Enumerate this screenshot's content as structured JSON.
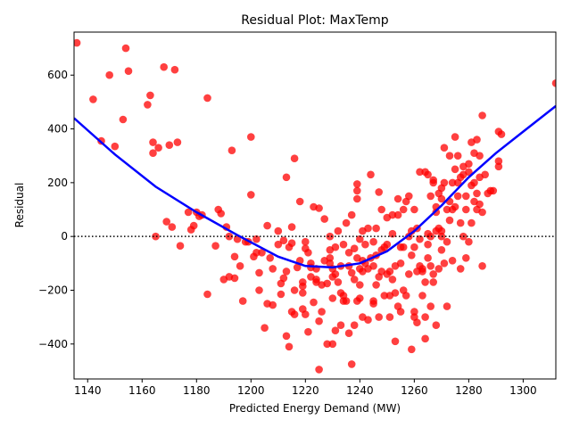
{
  "chart_data": {
    "type": "scatter",
    "title": "Residual Plot: MaxTemp",
    "xlabel": "Predicted Energy Demand (MW)",
    "ylabel": "Residual",
    "xlim": [
      1135,
      1312
    ],
    "ylim": [
      -530,
      760
    ],
    "xticks": [
      1140,
      1160,
      1180,
      1200,
      1220,
      1240,
      1260,
      1280,
      1300
    ],
    "yticks": [
      -400,
      -200,
      0,
      200,
      400,
      600
    ],
    "grid": false,
    "reference_line": {
      "y": 0,
      "style": "dotted",
      "color": "#000000"
    },
    "colors": {
      "points": "#ff0000",
      "trend": "#0000ff"
    },
    "trend_line": {
      "x": [
        1135,
        1150,
        1165,
        1180,
        1195,
        1210,
        1220,
        1230,
        1240,
        1250,
        1260,
        1270,
        1280,
        1290,
        1300,
        1312
      ],
      "y": [
        440,
        305,
        185,
        90,
        5,
        -75,
        -110,
        -115,
        -100,
        -55,
        20,
        115,
        220,
        310,
        390,
        485
      ]
    },
    "points": [
      [
        1136,
        720
      ],
      [
        1142,
        510
      ],
      [
        1145,
        355
      ],
      [
        1148,
        600
      ],
      [
        1150,
        335
      ],
      [
        1153,
        435
      ],
      [
        1154,
        700
      ],
      [
        1155,
        615
      ],
      [
        1162,
        490
      ],
      [
        1163,
        525
      ],
      [
        1164,
        350
      ],
      [
        1164,
        310
      ],
      [
        1165,
        0
      ],
      [
        1166,
        330
      ],
      [
        1168,
        630
      ],
      [
        1169,
        55
      ],
      [
        1170,
        340
      ],
      [
        1171,
        35
      ],
      [
        1172,
        620
      ],
      [
        1173,
        350
      ],
      [
        1174,
        -35
      ],
      [
        1177,
        90
      ],
      [
        1178,
        25
      ],
      [
        1179,
        40
      ],
      [
        1180,
        90
      ],
      [
        1181,
        75
      ],
      [
        1182,
        80
      ],
      [
        1184,
        515
      ],
      [
        1184,
        -215
      ],
      [
        1187,
        -35
      ],
      [
        1188,
        100
      ],
      [
        1189,
        85
      ],
      [
        1190,
        -160
      ],
      [
        1191,
        35
      ],
      [
        1192,
        0
      ],
      [
        1192,
        -150
      ],
      [
        1193,
        320
      ],
      [
        1194,
        -155
      ],
      [
        1194,
        -75
      ],
      [
        1195,
        -10
      ],
      [
        1196,
        -110
      ],
      [
        1197,
        -240
      ],
      [
        1198,
        -20
      ],
      [
        1199,
        -20
      ],
      [
        1200,
        155
      ],
      [
        1200,
        370
      ],
      [
        1201,
        -75
      ],
      [
        1202,
        -60
      ],
      [
        1202,
        -10
      ],
      [
        1203,
        -135
      ],
      [
        1203,
        -200
      ],
      [
        1204,
        -60
      ],
      [
        1205,
        -340
      ],
      [
        1206,
        -250
      ],
      [
        1206,
        40
      ],
      [
        1207,
        -80
      ],
      [
        1208,
        -255
      ],
      [
        1208,
        -120
      ],
      [
        1210,
        -30
      ],
      [
        1210,
        20
      ],
      [
        1211,
        -175
      ],
      [
        1211,
        -215
      ],
      [
        1212,
        -15
      ],
      [
        1212,
        -155
      ],
      [
        1213,
        -370
      ],
      [
        1213,
        220
      ],
      [
        1213,
        -130
      ],
      [
        1214,
        -40
      ],
      [
        1214,
        -410
      ],
      [
        1215,
        -25
      ],
      [
        1215,
        -280
      ],
      [
        1215,
        35
      ],
      [
        1216,
        -290
      ],
      [
        1216,
        -200
      ],
      [
        1216,
        290
      ],
      [
        1217,
        -115
      ],
      [
        1218,
        130
      ],
      [
        1218,
        -90
      ],
      [
        1219,
        -185
      ],
      [
        1219,
        -170
      ],
      [
        1219,
        -210
      ],
      [
        1219,
        -270
      ],
      [
        1220,
        -20
      ],
      [
        1220,
        -290
      ],
      [
        1220,
        -45
      ],
      [
        1221,
        -60
      ],
      [
        1221,
        -355
      ],
      [
        1222,
        -150
      ],
      [
        1222,
        -115
      ],
      [
        1222,
        -100
      ],
      [
        1223,
        110
      ],
      [
        1223,
        -245
      ],
      [
        1224,
        -170
      ],
      [
        1224,
        -160
      ],
      [
        1224,
        -120
      ],
      [
        1225,
        -495
      ],
      [
        1225,
        -315
      ],
      [
        1225,
        105
      ],
      [
        1226,
        -180
      ],
      [
        1226,
        -280
      ],
      [
        1227,
        -90
      ],
      [
        1227,
        65
      ],
      [
        1228,
        -400
      ],
      [
        1228,
        -175
      ],
      [
        1229,
        -100
      ],
      [
        1229,
        -50
      ],
      [
        1229,
        -80
      ],
      [
        1229,
        0
      ],
      [
        1230,
        -120
      ],
      [
        1230,
        -150
      ],
      [
        1230,
        -230
      ],
      [
        1230,
        -400
      ],
      [
        1231,
        -140
      ],
      [
        1231,
        -350
      ],
      [
        1231,
        -40
      ],
      [
        1232,
        -170
      ],
      [
        1232,
        20
      ],
      [
        1233,
        -110
      ],
      [
        1233,
        -210
      ],
      [
        1233,
        -330
      ],
      [
        1234,
        -220
      ],
      [
        1234,
        -30
      ],
      [
        1234,
        -240
      ],
      [
        1235,
        -240
      ],
      [
        1235,
        50
      ],
      [
        1236,
        -60
      ],
      [
        1236,
        -110
      ],
      [
        1236,
        -360
      ],
      [
        1237,
        -135
      ],
      [
        1237,
        80
      ],
      [
        1237,
        -475
      ],
      [
        1238,
        -45
      ],
      [
        1238,
        -330
      ],
      [
        1238,
        -160
      ],
      [
        1239,
        -80
      ],
      [
        1239,
        140
      ],
      [
        1239,
        -240
      ],
      [
        1239,
        170
      ],
      [
        1239,
        195
      ],
      [
        1240,
        -10
      ],
      [
        1240,
        -180
      ],
      [
        1240,
        -120
      ],
      [
        1240,
        -230
      ],
      [
        1241,
        20
      ],
      [
        1241,
        -300
      ],
      [
        1241,
        -90
      ],
      [
        1241,
        -130
      ],
      [
        1242,
        -100
      ],
      [
        1242,
        -30
      ],
      [
        1243,
        30
      ],
      [
        1243,
        -310
      ],
      [
        1243,
        -120
      ],
      [
        1244,
        230
      ],
      [
        1244,
        -80
      ],
      [
        1245,
        -250
      ],
      [
        1245,
        -240
      ],
      [
        1245,
        -110
      ],
      [
        1245,
        -20
      ],
      [
        1246,
        -180
      ],
      [
        1246,
        -70
      ],
      [
        1246,
        30
      ],
      [
        1247,
        165
      ],
      [
        1247,
        -300
      ],
      [
        1247,
        -150
      ],
      [
        1248,
        -130
      ],
      [
        1248,
        100
      ],
      [
        1248,
        -50
      ],
      [
        1249,
        -220
      ],
      [
        1249,
        -40
      ],
      [
        1250,
        -30
      ],
      [
        1250,
        -140
      ],
      [
        1250,
        70
      ],
      [
        1251,
        -300
      ],
      [
        1251,
        -220
      ],
      [
        1251,
        -130
      ],
      [
        1252,
        80
      ],
      [
        1252,
        10
      ],
      [
        1252,
        -160
      ],
      [
        1253,
        -390
      ],
      [
        1253,
        -210
      ],
      [
        1253,
        -110
      ],
      [
        1254,
        140
      ],
      [
        1254,
        80
      ],
      [
        1254,
        -260
      ],
      [
        1255,
        -100
      ],
      [
        1255,
        -40
      ],
      [
        1255,
        -280
      ],
      [
        1256,
        -40
      ],
      [
        1256,
        100
      ],
      [
        1256,
        -200
      ],
      [
        1257,
        130
      ],
      [
        1257,
        -220
      ],
      [
        1258,
        -140
      ],
      [
        1258,
        0
      ],
      [
        1258,
        150
      ],
      [
        1259,
        -420
      ],
      [
        1259,
        -70
      ],
      [
        1259,
        20
      ],
      [
        1260,
        -300
      ],
      [
        1260,
        -280
      ],
      [
        1260,
        100
      ],
      [
        1260,
        -40
      ],
      [
        1261,
        -130
      ],
      [
        1261,
        -320
      ],
      [
        1261,
        30
      ],
      [
        1262,
        -10
      ],
      [
        1262,
        240
      ],
      [
        1262,
        -110
      ],
      [
        1263,
        -130
      ],
      [
        1263,
        -220
      ],
      [
        1263,
        -120
      ],
      [
        1264,
        240
      ],
      [
        1264,
        -170
      ],
      [
        1264,
        -300
      ],
      [
        1264,
        -380
      ],
      [
        1265,
        10
      ],
      [
        1265,
        230
      ],
      [
        1265,
        -30
      ],
      [
        1265,
        -80
      ],
      [
        1266,
        150
      ],
      [
        1266,
        -260
      ],
      [
        1266,
        -110
      ],
      [
        1266,
        0
      ],
      [
        1267,
        200
      ],
      [
        1267,
        -140
      ],
      [
        1267,
        210
      ],
      [
        1267,
        -170
      ],
      [
        1268,
        -330
      ],
      [
        1268,
        90
      ],
      [
        1268,
        110
      ],
      [
        1268,
        20
      ],
      [
        1269,
        30
      ],
      [
        1269,
        -120
      ],
      [
        1269,
        160
      ],
      [
        1270,
        140
      ],
      [
        1270,
        -50
      ],
      [
        1270,
        0
      ],
      [
        1270,
        20
      ],
      [
        1270,
        180
      ],
      [
        1271,
        -100
      ],
      [
        1271,
        200
      ],
      [
        1271,
        330
      ],
      [
        1272,
        100
      ],
      [
        1272,
        -260
      ],
      [
        1272,
        -20
      ],
      [
        1273,
        300
      ],
      [
        1273,
        130
      ],
      [
        1273,
        60
      ],
      [
        1274,
        200
      ],
      [
        1274,
        -90
      ],
      [
        1274,
        100
      ],
      [
        1275,
        250
      ],
      [
        1275,
        370
      ],
      [
        1275,
        110
      ],
      [
        1276,
        200
      ],
      [
        1276,
        300
      ],
      [
        1276,
        150
      ],
      [
        1277,
        -120
      ],
      [
        1277,
        50
      ],
      [
        1277,
        220
      ],
      [
        1278,
        260
      ],
      [
        1278,
        0
      ],
      [
        1278,
        230
      ],
      [
        1279,
        -80
      ],
      [
        1279,
        150
      ],
      [
        1279,
        100
      ],
      [
        1280,
        270
      ],
      [
        1280,
        240
      ],
      [
        1280,
        -20
      ],
      [
        1281,
        350
      ],
      [
        1281,
        190
      ],
      [
        1281,
        50
      ],
      [
        1282,
        310
      ],
      [
        1282,
        200
      ],
      [
        1282,
        130
      ],
      [
        1283,
        360
      ],
      [
        1283,
        160
      ],
      [
        1283,
        100
      ],
      [
        1284,
        220
      ],
      [
        1284,
        300
      ],
      [
        1284,
        120
      ],
      [
        1285,
        -110
      ],
      [
        1285,
        450
      ],
      [
        1285,
        90
      ],
      [
        1286,
        230
      ],
      [
        1287,
        160
      ],
      [
        1288,
        170
      ],
      [
        1289,
        170
      ],
      [
        1291,
        260
      ],
      [
        1291,
        280
      ],
      [
        1291,
        390
      ],
      [
        1292,
        380
      ],
      [
        1312,
        570
      ]
    ]
  }
}
